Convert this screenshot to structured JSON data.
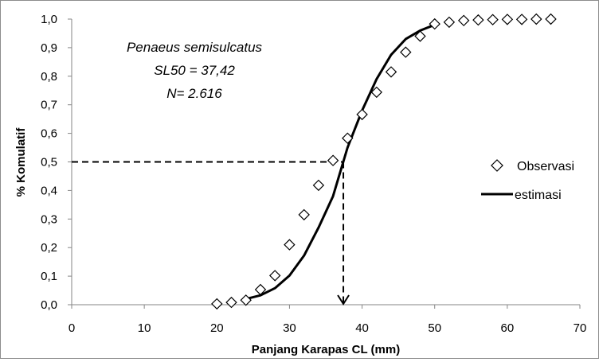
{
  "chart_data": {
    "type": "scatter",
    "xlabel": "Panjang Karapas CL (mm)",
    "ylabel": "% Komulatif",
    "xlim": [
      0,
      70
    ],
    "ylim": [
      0,
      1.0
    ],
    "x_ticks": [
      "0",
      "10",
      "20",
      "30",
      "40",
      "50",
      "60",
      "70"
    ],
    "y_ticks": [
      "0,0",
      "0,1",
      "0,2",
      "0,3",
      "0,4",
      "0,5",
      "0,6",
      "0,7",
      "0,8",
      "0,9",
      "1,0"
    ],
    "grid": false,
    "legend_position": "right",
    "annotation": {
      "species": "Penaeus semisulcatus",
      "sl50": "SL50 =  37,42",
      "n": "N= 2.616"
    },
    "sl50_value": 37.42,
    "series": [
      {
        "name": "Observasi",
        "kind": "marker",
        "marker": "diamond",
        "x": [
          20,
          22,
          24,
          26,
          28,
          30,
          32,
          34,
          36,
          38,
          40,
          42,
          44,
          46,
          48,
          50,
          52,
          54,
          56,
          58,
          60,
          62,
          64,
          66
        ],
        "y": [
          0.003,
          0.008,
          0.016,
          0.053,
          0.102,
          0.21,
          0.315,
          0.418,
          0.505,
          0.583,
          0.666,
          0.744,
          0.815,
          0.884,
          0.94,
          0.983,
          0.989,
          0.995,
          0.997,
          0.998,
          0.999,
          0.999,
          1.0,
          1.0
        ]
      },
      {
        "name": "estimasi",
        "kind": "line",
        "x": [
          24,
          26,
          28,
          30,
          32,
          34,
          36,
          38,
          40,
          42,
          44,
          46,
          48,
          50
        ],
        "y": [
          0.02,
          0.033,
          0.058,
          0.102,
          0.172,
          0.27,
          0.38,
          0.55,
          0.68,
          0.79,
          0.875,
          0.93,
          0.96,
          0.98
        ]
      }
    ]
  }
}
